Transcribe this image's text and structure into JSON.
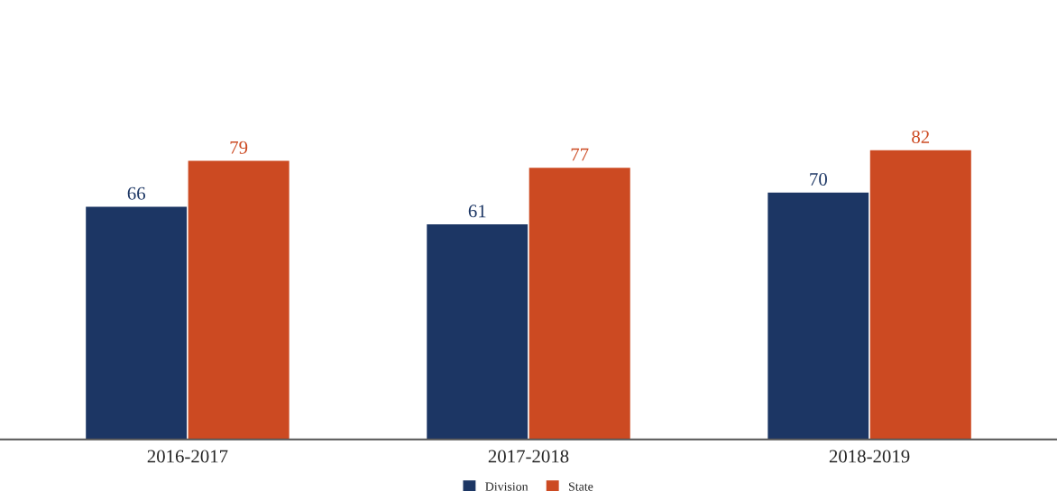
{
  "chart_data": {
    "type": "bar",
    "categories": [
      "2016-2017",
      "2017-2018",
      "2018-2019"
    ],
    "series": [
      {
        "name": "Division",
        "color": "#1c3664",
        "values": [
          66,
          61,
          70
        ]
      },
      {
        "name": "State",
        "color": "#cc4a22",
        "values": [
          79,
          77,
          82
        ]
      }
    ],
    "data_labels": true,
    "legend": "bottom",
    "grid": false,
    "tick_labels": "x"
  }
}
